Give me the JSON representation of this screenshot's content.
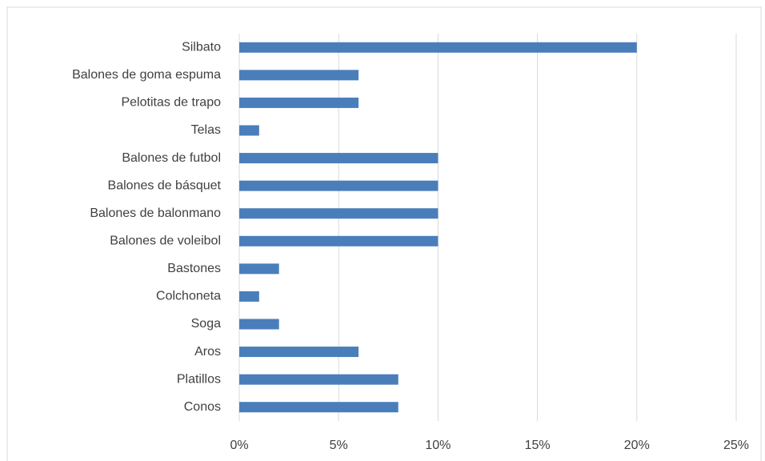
{
  "chart_data": {
    "type": "barh",
    "categories": [
      "Silbato",
      "Balones de goma espuma",
      "Pelotitas de trapo",
      "Telas",
      "Balones de futbol",
      "Balones de básquet",
      "Balones de balonmano",
      "Balones de voleibol",
      "Bastones",
      "Colchoneta",
      "Soga",
      "Aros",
      "Platillos",
      "Conos"
    ],
    "values": [
      20,
      6,
      6,
      1,
      10,
      10,
      10,
      10,
      2,
      1,
      2,
      6,
      8,
      8
    ],
    "color": "#4a7ebb",
    "xlim": [
      0,
      25
    ],
    "xticks": [
      {
        "value": 0,
        "label": "0%"
      },
      {
        "value": 5,
        "label": "5%"
      },
      {
        "value": 10,
        "label": "10%"
      },
      {
        "value": 15,
        "label": "15%"
      },
      {
        "value": 20,
        "label": "20%"
      },
      {
        "value": 25,
        "label": "25%"
      }
    ],
    "grid": true
  }
}
